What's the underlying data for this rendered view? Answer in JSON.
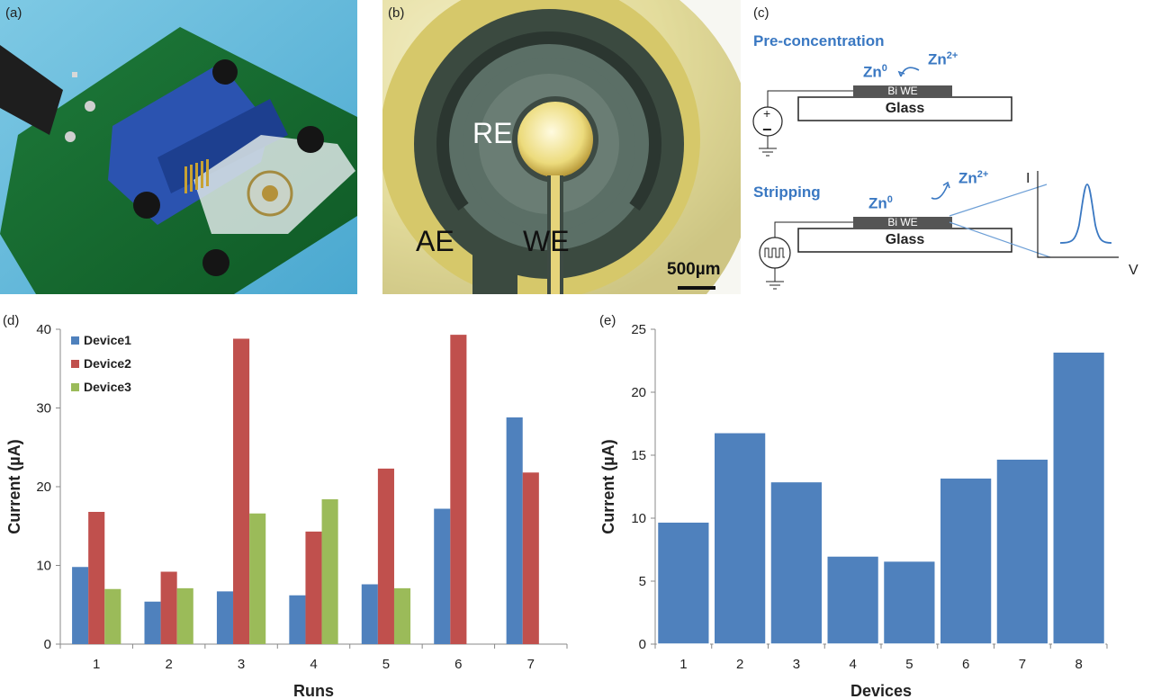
{
  "panels": {
    "a": {
      "label": "(a)"
    },
    "b": {
      "label": "(b)",
      "re": "RE",
      "ae": "AE",
      "we": "WE",
      "scale": "500µm"
    },
    "c": {
      "label": "(c)",
      "step1_title": "Pre-concentration",
      "step2_title": "Stripping",
      "zn0": "Zn",
      "zn0_sup": "0",
      "zn2": "Zn",
      "zn2_sup": "2+",
      "electrode": "Bi WE",
      "substrate": "Glass",
      "plus": "+",
      "minus": "−",
      "axis_i": "I",
      "axis_v": "V"
    },
    "d": {
      "label": "(d)"
    },
    "e": {
      "label": "(e)"
    }
  },
  "colors": {
    "device1": "#4F81BD",
    "device2": "#C0504D",
    "device3": "#9BBB59",
    "axis": "#888888",
    "diagram_blue": "#3A78C2"
  },
  "chart_data": [
    {
      "id": "d",
      "type": "bar",
      "categories": [
        "1",
        "2",
        "3",
        "4",
        "5",
        "6",
        "7"
      ],
      "series": [
        {
          "name": "Device1",
          "values": [
            9.8,
            5.4,
            6.7,
            6.2,
            7.6,
            17.2,
            28.8
          ]
        },
        {
          "name": "Device2",
          "values": [
            16.8,
            9.2,
            38.8,
            14.3,
            22.3,
            39.3,
            21.8
          ]
        },
        {
          "name": "Device3",
          "values": [
            7.0,
            7.1,
            16.6,
            18.4,
            7.1,
            null,
            null
          ]
        }
      ],
      "yticks": [
        "0",
        "10",
        "20",
        "30",
        "40"
      ],
      "xlabel": "Runs",
      "ylabel": "Current (µA)",
      "ylim": [
        0,
        40
      ],
      "legend": "top-left",
      "grid": false
    },
    {
      "id": "e",
      "type": "bar",
      "categories": [
        "1",
        "2",
        "3",
        "4",
        "5",
        "6",
        "7",
        "8"
      ],
      "values": [
        9.7,
        16.8,
        12.9,
        7.0,
        6.6,
        13.2,
        14.7,
        23.2
      ],
      "yticks": [
        "0",
        "5",
        "10",
        "15",
        "20",
        "25"
      ],
      "xlabel": "Devices",
      "ylabel": "Current (µA)",
      "ylim": [
        0,
        25
      ],
      "grid": false
    }
  ]
}
